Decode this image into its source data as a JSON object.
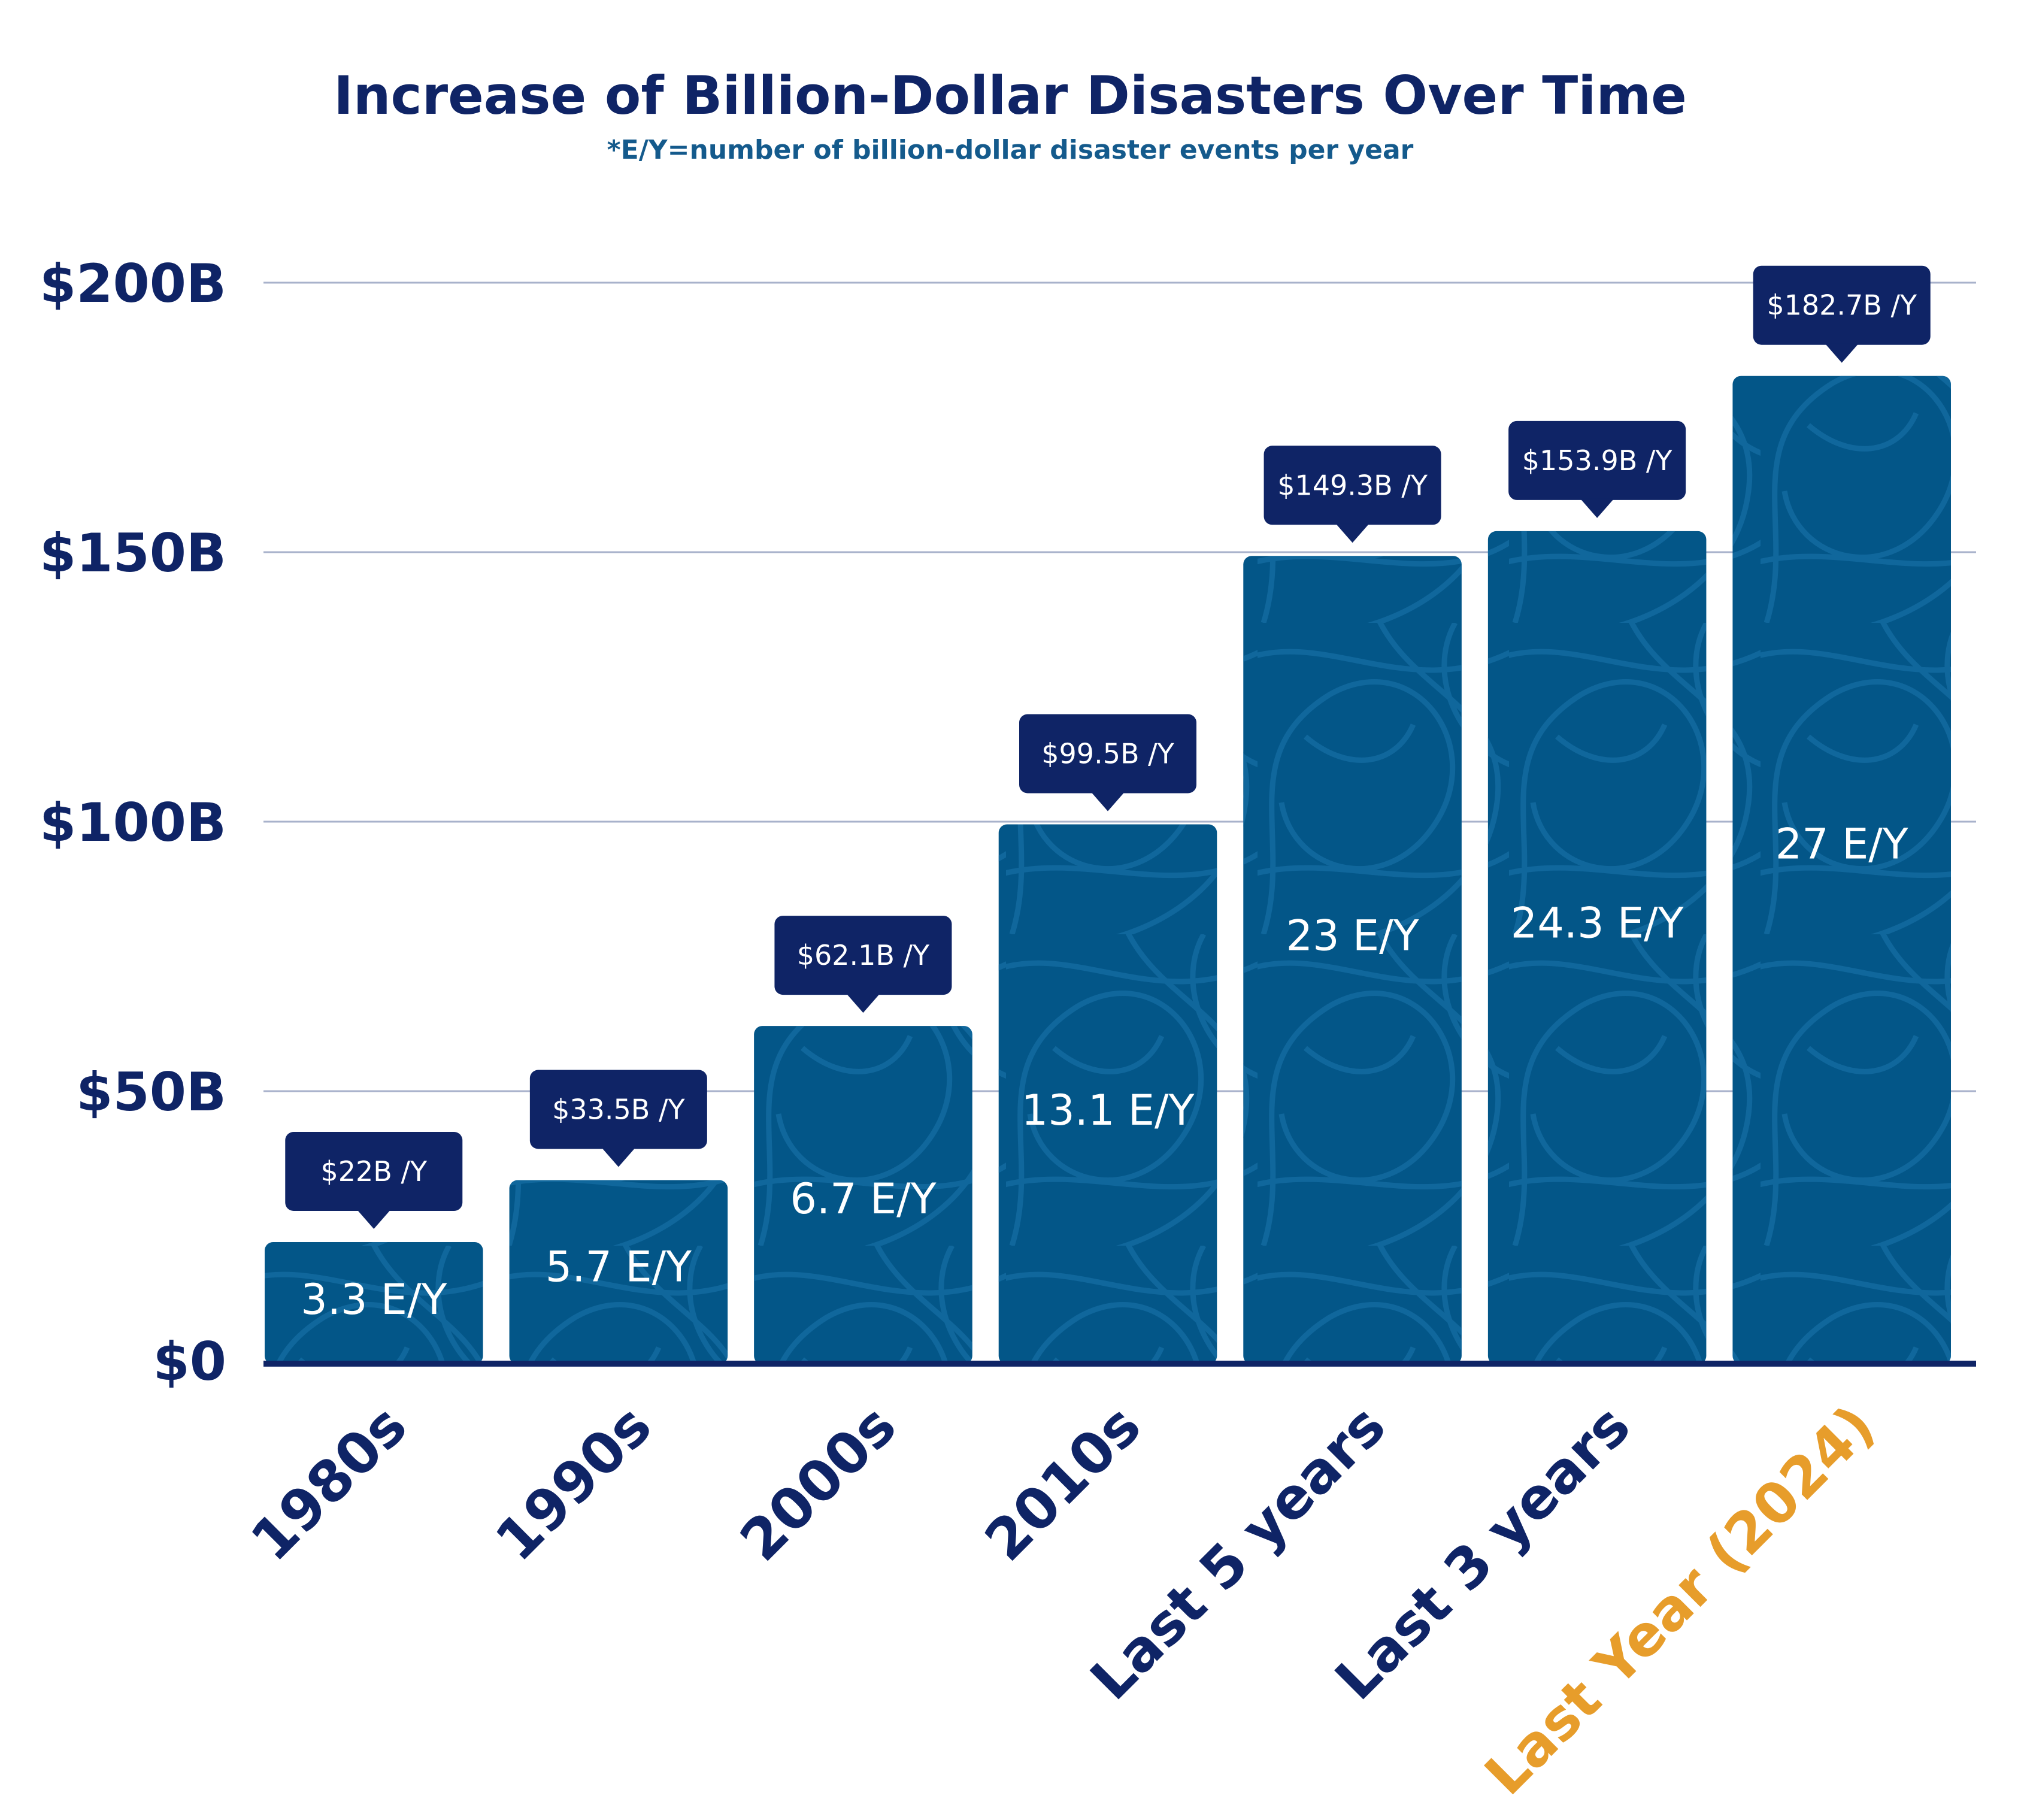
{
  "chart_data": {
    "type": "bar",
    "title": "Increase of Billion-Dollar Disasters Over Time",
    "subtitle": "*E/Y=number of billion-dollar disaster events per year",
    "categories": [
      "1980s",
      "1990s",
      "2000s",
      "2010s",
      "Last 5 years",
      "Last 3 years",
      "Last Year (2024)"
    ],
    "values": [
      22,
      33.5,
      62.1,
      99.5,
      149.3,
      153.9,
      182.7
    ],
    "value_labels": [
      "$22B /Y",
      "$33.5B /Y",
      "$62.1B /Y",
      "$99.5B /Y",
      "$149.3B /Y",
      "$153.9B /Y",
      "$182.7B /Y"
    ],
    "events_per_year": [
      3.3,
      5.7,
      6.7,
      13.1,
      23,
      24.3,
      27
    ],
    "events_labels": [
      "3.3 E/Y",
      "5.7 E/Y",
      "6.7 E/Y",
      "13.1 E/Y",
      "23 E/Y",
      "24.3 E/Y",
      "27 E/Y"
    ],
    "yticks": [
      0,
      50,
      100,
      150,
      200
    ],
    "ytick_labels": [
      "$0",
      "$50B",
      "$100B",
      "$150B",
      "$200B"
    ],
    "ylim": [
      0,
      200
    ],
    "xlabel": "",
    "ylabel": "",
    "grid": true,
    "legend": "none",
    "highlight_category_index": 6,
    "colors": {
      "bar": "#035688",
      "bar_pattern": "#1a74ad",
      "callout": "#0f2466",
      "axis_text": "#0f2466",
      "highlight_text": "#e79d2b",
      "gridline": "#a8b2cb",
      "baseline": "#0f2466",
      "subtitle": "#145a8c"
    }
  }
}
